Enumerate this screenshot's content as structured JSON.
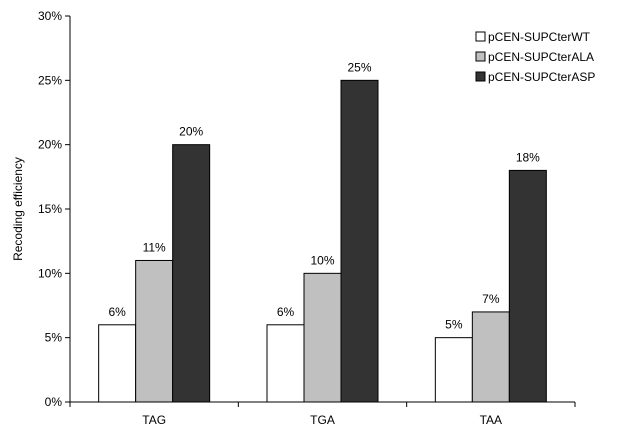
{
  "chart_data": {
    "type": "bar",
    "title": "",
    "xlabel": "",
    "ylabel": "Recoding efficiency",
    "categories": [
      "TAG",
      "TGA",
      "TAA"
    ],
    "series": [
      {
        "name": "pCEN-SUPCterWT",
        "values": [
          6,
          6,
          5
        ],
        "labels": [
          "6%",
          "6%",
          "5%"
        ],
        "color": "#ffffff"
      },
      {
        "name": "pCEN-SUPCterALA",
        "values": [
          11,
          10,
          7
        ],
        "labels": [
          "11%",
          "10%",
          "7%"
        ],
        "color": "#c0c0c0"
      },
      {
        "name": "pCEN-SUPCterASP",
        "values": [
          20,
          25,
          18
        ],
        "labels": [
          "20%",
          "25%",
          "18%"
        ],
        "color": "#333333"
      }
    ],
    "ylim": [
      0,
      30
    ],
    "yticks": [
      0,
      5,
      10,
      15,
      20,
      25,
      30
    ],
    "ytick_labels": [
      "0%",
      "5%",
      "10%",
      "15%",
      "20%",
      "25%",
      "30%"
    ],
    "grid": false,
    "legend_position": "top-right"
  }
}
